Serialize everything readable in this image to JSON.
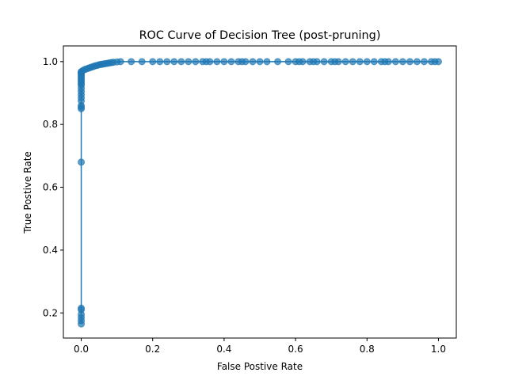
{
  "chart_data": {
    "type": "line",
    "title": "ROC Curve of Decision Tree (post-pruning)",
    "xlabel": "False Postive Rate",
    "ylabel": "True Postive Rate",
    "xlim": [
      -0.05,
      1.05
    ],
    "ylim": [
      0.12,
      1.05
    ],
    "xticks": [
      0.0,
      0.2,
      0.4,
      0.6,
      0.8,
      1.0
    ],
    "xtick_labels": [
      "0.0",
      "0.2",
      "0.4",
      "0.6",
      "0.8",
      "1.0"
    ],
    "yticks": [
      0.2,
      0.4,
      0.6,
      0.8,
      1.0
    ],
    "ytick_labels": [
      "0.2",
      "0.4",
      "0.6",
      "0.8",
      "1.0"
    ],
    "grid": false,
    "legend": "none",
    "color": "#1f77b4",
    "series": [
      {
        "x": [
          0.0,
          0.0,
          0.0,
          0.0,
          0.0,
          0.0,
          0.0,
          0.0,
          0.0,
          0.0,
          0.0,
          0.0,
          0.0,
          0.0,
          0.0,
          0.0,
          0.0,
          0.0,
          0.0,
          0.0,
          0.0,
          0.0,
          0.0,
          0.0,
          0.0,
          0.0,
          0.005,
          0.01,
          0.015,
          0.02,
          0.025,
          0.03,
          0.035,
          0.04,
          0.045,
          0.05,
          0.055,
          0.06,
          0.065,
          0.07,
          0.075,
          0.08,
          0.085,
          0.09,
          0.1,
          0.11,
          0.14,
          0.17,
          0.2,
          0.22,
          0.24,
          0.26,
          0.28,
          0.3,
          0.32,
          0.34,
          0.35,
          0.36,
          0.38,
          0.4,
          0.42,
          0.44,
          0.45,
          0.46,
          0.48,
          0.5,
          0.52,
          0.55,
          0.58,
          0.6,
          0.61,
          0.62,
          0.64,
          0.65,
          0.66,
          0.68,
          0.7,
          0.71,
          0.72,
          0.74,
          0.76,
          0.78,
          0.8,
          0.82,
          0.84,
          0.85,
          0.86,
          0.88,
          0.9,
          0.92,
          0.94,
          0.96,
          0.98,
          0.99,
          1.0
        ],
        "y": [
          0.165,
          0.175,
          0.185,
          0.195,
          0.21,
          0.215,
          0.68,
          0.85,
          0.855,
          0.86,
          0.875,
          0.885,
          0.895,
          0.905,
          0.915,
          0.925,
          0.93,
          0.935,
          0.94,
          0.945,
          0.95,
          0.955,
          0.96,
          0.963,
          0.966,
          0.968,
          0.972,
          0.975,
          0.977,
          0.979,
          0.981,
          0.983,
          0.985,
          0.987,
          0.988,
          0.99,
          0.991,
          0.992,
          0.993,
          0.994,
          0.995,
          0.996,
          0.997,
          0.998,
          0.999,
          1.0,
          1.0,
          1.0,
          1.0,
          1.0,
          1.0,
          1.0,
          1.0,
          1.0,
          1.0,
          1.0,
          1.0,
          1.0,
          1.0,
          1.0,
          1.0,
          1.0,
          1.0,
          1.0,
          1.0,
          1.0,
          1.0,
          1.0,
          1.0,
          1.0,
          1.0,
          1.0,
          1.0,
          1.0,
          1.0,
          1.0,
          1.0,
          1.0,
          1.0,
          1.0,
          1.0,
          1.0,
          1.0,
          1.0,
          1.0,
          1.0,
          1.0,
          1.0,
          1.0,
          1.0,
          1.0,
          1.0,
          1.0,
          1.0,
          1.0
        ]
      }
    ]
  }
}
